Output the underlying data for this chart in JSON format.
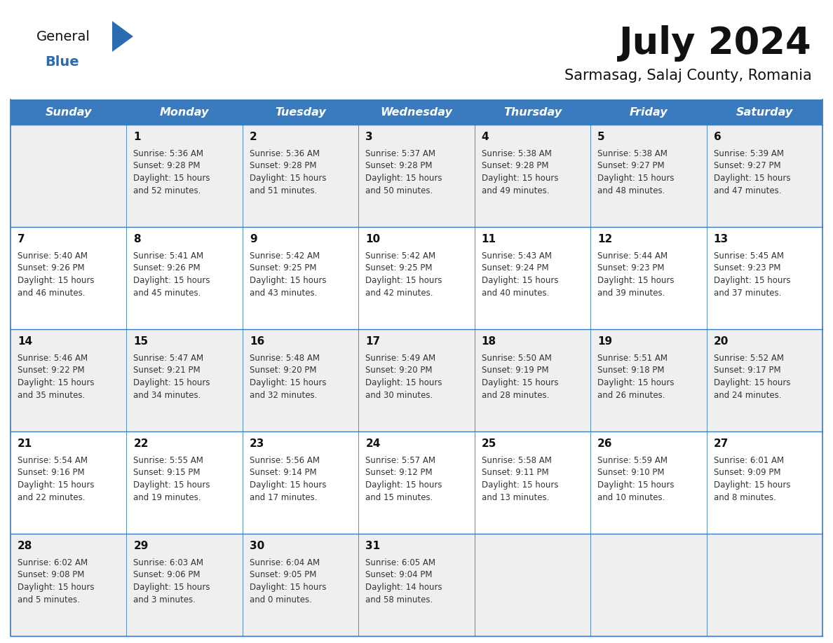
{
  "title": "July 2024",
  "subtitle": "Sarmasag, Salaj County, Romania",
  "header_color": "#3a7abf",
  "header_text_color": "#ffffff",
  "cell_bg_light": "#efefef",
  "cell_bg_white": "#ffffff",
  "day_headers": [
    "Sunday",
    "Monday",
    "Tuesday",
    "Wednesday",
    "Thursday",
    "Friday",
    "Saturday"
  ],
  "weeks": [
    [
      {
        "day": "",
        "sunrise": "",
        "sunset": "",
        "daylight_hours": "",
        "daylight_mins": ""
      },
      {
        "day": "1",
        "sunrise": "5:36 AM",
        "sunset": "9:28 PM",
        "daylight_hours": "15 hours",
        "daylight_mins": "and 52 minutes."
      },
      {
        "day": "2",
        "sunrise": "5:36 AM",
        "sunset": "9:28 PM",
        "daylight_hours": "15 hours",
        "daylight_mins": "and 51 minutes."
      },
      {
        "day": "3",
        "sunrise": "5:37 AM",
        "sunset": "9:28 PM",
        "daylight_hours": "15 hours",
        "daylight_mins": "and 50 minutes."
      },
      {
        "day": "4",
        "sunrise": "5:38 AM",
        "sunset": "9:28 PM",
        "daylight_hours": "15 hours",
        "daylight_mins": "and 49 minutes."
      },
      {
        "day": "5",
        "sunrise": "5:38 AM",
        "sunset": "9:27 PM",
        "daylight_hours": "15 hours",
        "daylight_mins": "and 48 minutes."
      },
      {
        "day": "6",
        "sunrise": "5:39 AM",
        "sunset": "9:27 PM",
        "daylight_hours": "15 hours",
        "daylight_mins": "and 47 minutes."
      }
    ],
    [
      {
        "day": "7",
        "sunrise": "5:40 AM",
        "sunset": "9:26 PM",
        "daylight_hours": "15 hours",
        "daylight_mins": "and 46 minutes."
      },
      {
        "day": "8",
        "sunrise": "5:41 AM",
        "sunset": "9:26 PM",
        "daylight_hours": "15 hours",
        "daylight_mins": "and 45 minutes."
      },
      {
        "day": "9",
        "sunrise": "5:42 AM",
        "sunset": "9:25 PM",
        "daylight_hours": "15 hours",
        "daylight_mins": "and 43 minutes."
      },
      {
        "day": "10",
        "sunrise": "5:42 AM",
        "sunset": "9:25 PM",
        "daylight_hours": "15 hours",
        "daylight_mins": "and 42 minutes."
      },
      {
        "day": "11",
        "sunrise": "5:43 AM",
        "sunset": "9:24 PM",
        "daylight_hours": "15 hours",
        "daylight_mins": "and 40 minutes."
      },
      {
        "day": "12",
        "sunrise": "5:44 AM",
        "sunset": "9:23 PM",
        "daylight_hours": "15 hours",
        "daylight_mins": "and 39 minutes."
      },
      {
        "day": "13",
        "sunrise": "5:45 AM",
        "sunset": "9:23 PM",
        "daylight_hours": "15 hours",
        "daylight_mins": "and 37 minutes."
      }
    ],
    [
      {
        "day": "14",
        "sunrise": "5:46 AM",
        "sunset": "9:22 PM",
        "daylight_hours": "15 hours",
        "daylight_mins": "and 35 minutes."
      },
      {
        "day": "15",
        "sunrise": "5:47 AM",
        "sunset": "9:21 PM",
        "daylight_hours": "15 hours",
        "daylight_mins": "and 34 minutes."
      },
      {
        "day": "16",
        "sunrise": "5:48 AM",
        "sunset": "9:20 PM",
        "daylight_hours": "15 hours",
        "daylight_mins": "and 32 minutes."
      },
      {
        "day": "17",
        "sunrise": "5:49 AM",
        "sunset": "9:20 PM",
        "daylight_hours": "15 hours",
        "daylight_mins": "and 30 minutes."
      },
      {
        "day": "18",
        "sunrise": "5:50 AM",
        "sunset": "9:19 PM",
        "daylight_hours": "15 hours",
        "daylight_mins": "and 28 minutes."
      },
      {
        "day": "19",
        "sunrise": "5:51 AM",
        "sunset": "9:18 PM",
        "daylight_hours": "15 hours",
        "daylight_mins": "and 26 minutes."
      },
      {
        "day": "20",
        "sunrise": "5:52 AM",
        "sunset": "9:17 PM",
        "daylight_hours": "15 hours",
        "daylight_mins": "and 24 minutes."
      }
    ],
    [
      {
        "day": "21",
        "sunrise": "5:54 AM",
        "sunset": "9:16 PM",
        "daylight_hours": "15 hours",
        "daylight_mins": "and 22 minutes."
      },
      {
        "day": "22",
        "sunrise": "5:55 AM",
        "sunset": "9:15 PM",
        "daylight_hours": "15 hours",
        "daylight_mins": "and 19 minutes."
      },
      {
        "day": "23",
        "sunrise": "5:56 AM",
        "sunset": "9:14 PM",
        "daylight_hours": "15 hours",
        "daylight_mins": "and 17 minutes."
      },
      {
        "day": "24",
        "sunrise": "5:57 AM",
        "sunset": "9:12 PM",
        "daylight_hours": "15 hours",
        "daylight_mins": "and 15 minutes."
      },
      {
        "day": "25",
        "sunrise": "5:58 AM",
        "sunset": "9:11 PM",
        "daylight_hours": "15 hours",
        "daylight_mins": "and 13 minutes."
      },
      {
        "day": "26",
        "sunrise": "5:59 AM",
        "sunset": "9:10 PM",
        "daylight_hours": "15 hours",
        "daylight_mins": "and 10 minutes."
      },
      {
        "day": "27",
        "sunrise": "6:01 AM",
        "sunset": "9:09 PM",
        "daylight_hours": "15 hours",
        "daylight_mins": "and 8 minutes."
      }
    ],
    [
      {
        "day": "28",
        "sunrise": "6:02 AM",
        "sunset": "9:08 PM",
        "daylight_hours": "15 hours",
        "daylight_mins": "and 5 minutes."
      },
      {
        "day": "29",
        "sunrise": "6:03 AM",
        "sunset": "9:06 PM",
        "daylight_hours": "15 hours",
        "daylight_mins": "and 3 minutes."
      },
      {
        "day": "30",
        "sunrise": "6:04 AM",
        "sunset": "9:05 PM",
        "daylight_hours": "15 hours",
        "daylight_mins": "and 0 minutes."
      },
      {
        "day": "31",
        "sunrise": "6:05 AM",
        "sunset": "9:04 PM",
        "daylight_hours": "14 hours",
        "daylight_mins": "and 58 minutes."
      },
      {
        "day": "",
        "sunrise": "",
        "sunset": "",
        "daylight_hours": "",
        "daylight_mins": ""
      },
      {
        "day": "",
        "sunrise": "",
        "sunset": "",
        "daylight_hours": "",
        "daylight_mins": ""
      },
      {
        "day": "",
        "sunrise": "",
        "sunset": "",
        "daylight_hours": "",
        "daylight_mins": ""
      }
    ]
  ],
  "logo_general_color": "#111111",
  "logo_blue_color": "#2b6cb0",
  "line_color": "#3a7abf",
  "text_color_day": "#111111",
  "text_color_info": "#333333",
  "fig_width": 11.88,
  "fig_height": 9.18,
  "dpi": 100
}
